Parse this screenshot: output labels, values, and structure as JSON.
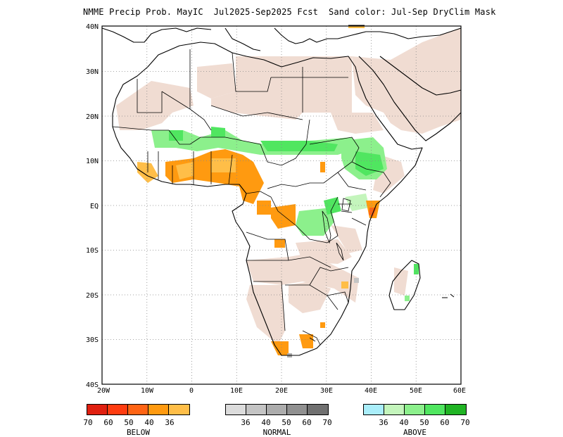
{
  "title": "NMME Precip Prob. MayIC  Jul2025-Sep2025 Fcst  Sand color: Jul-Sep DryClim Mask",
  "axes": {
    "lat_labels": [
      "40N",
      "30N",
      "20N",
      "10N",
      "EQ",
      "10S",
      "20S",
      "30S",
      "40S"
    ],
    "lon_labels": [
      "20W",
      "10W",
      "0",
      "10E",
      "20E",
      "30E",
      "40E",
      "50E",
      "60E"
    ]
  },
  "colors": {
    "below": [
      "#e02010",
      "#ff3c10",
      "#ff6414",
      "#ff9a10",
      "#ffbe48"
    ],
    "normal": [
      "#dcdcdc",
      "#c4c4c4",
      "#acacac",
      "#909090",
      "#707070"
    ],
    "above": [
      "#aaeefa",
      "#c4f5bc",
      "#8cf08c",
      "#50e660",
      "#20b424"
    ],
    "dry_mask": "#f0dcd2"
  },
  "legend": {
    "below": {
      "numbers": [
        "70",
        "60",
        "50",
        "40",
        "36"
      ],
      "label": "BELOW"
    },
    "normal": {
      "numbers": [
        "36",
        "40",
        "50",
        "60",
        "70"
      ],
      "label": "NORMAL"
    },
    "above": {
      "numbers": [
        "36",
        "40",
        "50",
        "60",
        "70"
      ],
      "label": "ABOVE"
    }
  }
}
